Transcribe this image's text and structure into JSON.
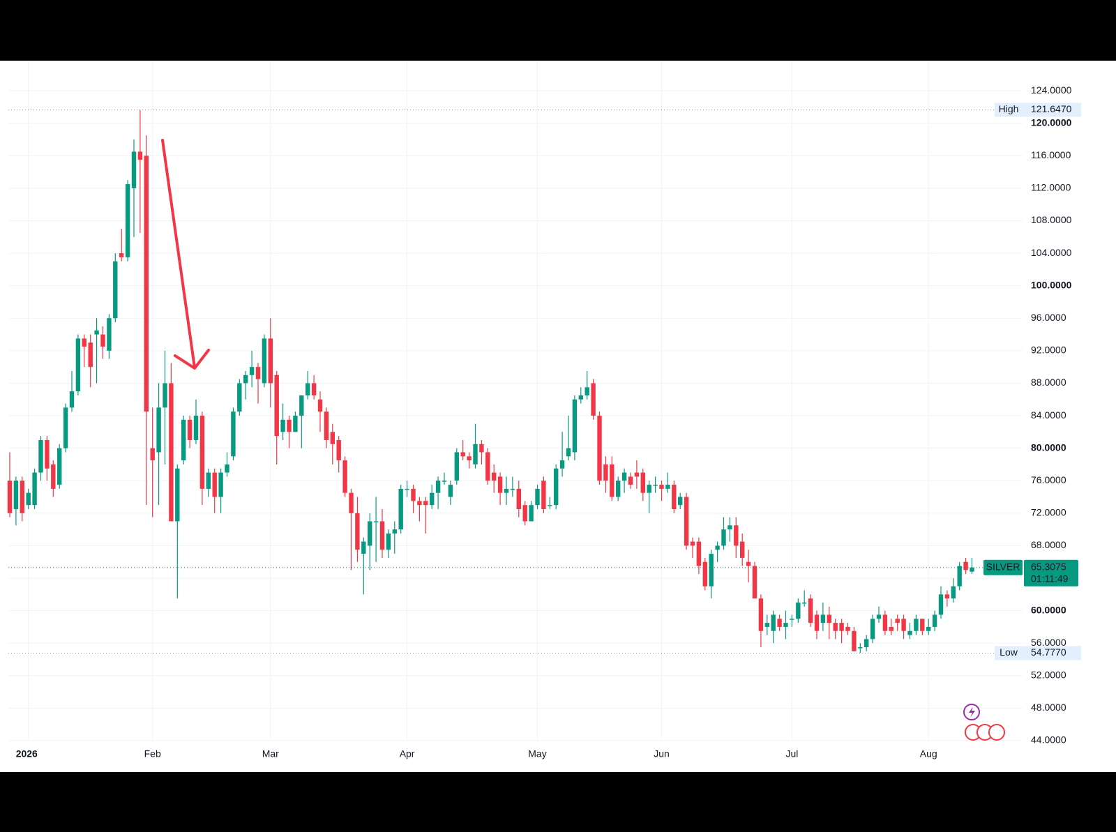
{
  "chart_data": {
    "type": "candlestick",
    "up_color": "#089981",
    "down_color": "#f23645",
    "candles": [
      [
        76,
        79.5,
        71.5,
        72
      ],
      [
        72.5,
        76.5,
        70.5,
        76
      ],
      [
        76,
        76.5,
        71,
        72
      ],
      [
        73,
        75,
        72.5,
        74.5
      ],
      [
        73,
        77.5,
        72.5,
        77
      ],
      [
        77,
        81.5,
        76,
        81
      ],
      [
        81,
        81.5,
        76,
        77.5
      ],
      [
        78,
        78.5,
        74,
        75
      ],
      [
        75.5,
        80.5,
        75,
        80
      ],
      [
        80,
        85.5,
        79.5,
        85
      ],
      [
        85,
        89.5,
        84.5,
        87
      ],
      [
        87,
        94,
        86.5,
        93.5
      ],
      [
        93.5,
        94,
        90,
        92.5
      ],
      [
        93,
        94,
        87.5,
        90
      ],
      [
        94,
        96,
        88,
        94.5
      ],
      [
        94,
        95,
        91,
        92.5
      ],
      [
        92,
        96.5,
        91,
        96
      ],
      [
        96,
        104,
        95.5,
        103
      ],
      [
        104,
        107,
        103,
        103.5
      ],
      [
        103.5,
        113,
        103,
        112.5
      ],
      [
        112,
        118,
        106,
        116.5
      ],
      [
        116.5,
        121.647,
        106.5,
        115.5
      ],
      [
        116,
        118.5,
        73,
        84.5
      ],
      [
        80,
        85,
        71.5,
        78.5
      ],
      [
        79.5,
        88,
        73,
        85
      ],
      [
        85,
        92,
        78,
        88
      ],
      [
        88,
        90.5,
        71,
        71
      ],
      [
        71,
        78,
        61.5,
        77.5
      ],
      [
        78.5,
        84,
        78,
        83.5
      ],
      [
        83.5,
        84,
        80,
        81
      ],
      [
        81,
        86,
        80.5,
        84
      ],
      [
        84,
        84.5,
        73,
        75
      ],
      [
        75,
        77.5,
        74,
        77
      ],
      [
        77,
        77.5,
        72,
        74
      ],
      [
        74,
        77.5,
        72,
        77
      ],
      [
        77,
        79.5,
        76.5,
        78
      ],
      [
        79,
        85,
        78.5,
        84.5
      ],
      [
        84.5,
        88.5,
        84,
        88
      ],
      [
        88,
        89.5,
        86,
        89
      ],
      [
        89,
        92,
        87.5,
        90
      ],
      [
        90,
        90.5,
        85.5,
        88.5
      ],
      [
        88,
        94,
        87.5,
        93.5
      ],
      [
        93.5,
        96,
        85,
        88
      ],
      [
        89,
        89.5,
        78,
        81.5
      ],
      [
        82,
        85.5,
        81,
        83.5
      ],
      [
        83.5,
        84,
        80,
        82
      ],
      [
        82,
        84.5,
        82,
        84
      ],
      [
        84,
        86.5,
        80,
        86.5
      ],
      [
        86.5,
        89.5,
        86,
        88
      ],
      [
        88,
        89,
        86,
        86.5
      ],
      [
        86,
        87,
        82,
        84.5
      ],
      [
        84.5,
        85,
        80,
        81
      ],
      [
        82,
        83,
        78,
        80.5
      ],
      [
        81,
        81.5,
        77,
        78.5
      ],
      [
        78.5,
        79,
        74,
        74.5
      ],
      [
        74.5,
        75,
        65,
        72
      ],
      [
        72,
        74,
        66,
        67.5
      ],
      [
        67,
        69,
        62,
        68.5
      ],
      [
        68,
        72,
        65,
        71
      ],
      [
        71,
        74,
        66,
        71
      ],
      [
        71,
        72.5,
        66.5,
        67.5
      ],
      [
        67.5,
        70,
        66.5,
        69.5
      ],
      [
        69.5,
        71,
        67,
        70
      ],
      [
        70,
        75.5,
        69.5,
        75
      ],
      [
        75,
        76,
        74,
        75
      ],
      [
        75,
        75.5,
        72,
        73.5
      ],
      [
        73.5,
        74,
        71,
        73
      ],
      [
        73.5,
        74,
        69.5,
        73
      ],
      [
        73,
        75.5,
        72.5,
        74.5
      ],
      [
        74.5,
        76.5,
        72.5,
        76
      ],
      [
        76,
        77,
        75.5,
        76
      ],
      [
        74,
        76,
        73,
        75.5
      ],
      [
        76,
        80,
        75.5,
        79.5
      ],
      [
        79.5,
        81,
        78.5,
        79
      ],
      [
        79,
        79.5,
        77.5,
        78.5
      ],
      [
        78,
        83,
        77.5,
        80.5
      ],
      [
        80.5,
        81,
        78,
        79.5
      ],
      [
        79.5,
        80,
        75.5,
        76
      ],
      [
        77,
        78,
        74.5,
        76
      ],
      [
        76.5,
        77,
        73,
        74.5
      ],
      [
        74.5,
        76.5,
        73,
        75
      ],
      [
        75,
        76.5,
        74,
        75
      ],
      [
        75,
        76,
        71.5,
        72.5
      ],
      [
        73,
        73.5,
        70.5,
        71
      ],
      [
        71,
        73.5,
        71,
        73
      ],
      [
        73,
        75.5,
        72.5,
        75
      ],
      [
        76,
        76.5,
        72,
        72.5
      ],
      [
        73,
        74,
        72.5,
        73
      ],
      [
        73,
        78,
        72.5,
        77.5
      ],
      [
        77.5,
        82,
        76.5,
        78.5
      ],
      [
        79,
        84,
        78.5,
        80
      ],
      [
        79.5,
        86.5,
        78.5,
        86
      ],
      [
        86,
        87.5,
        85.5,
        86.5
      ],
      [
        86.5,
        89.5,
        86,
        87.5
      ],
      [
        88,
        88.5,
        83.5,
        84
      ],
      [
        84,
        84.5,
        75.5,
        76
      ],
      [
        78,
        79,
        74.5,
        76
      ],
      [
        78,
        79,
        73.5,
        74
      ],
      [
        74,
        76.5,
        73.5,
        76
      ],
      [
        76,
        77.5,
        74.5,
        77
      ],
      [
        76.5,
        77,
        75,
        75.5
      ],
      [
        77,
        78.5,
        75,
        76.5
      ],
      [
        77,
        77.5,
        73.5,
        74.5
      ],
      [
        74.5,
        76,
        72,
        75.5
      ],
      [
        75.5,
        76.5,
        74.5,
        75.5
      ],
      [
        75.5,
        76,
        73.5,
        75
      ],
      [
        75,
        77,
        74.5,
        75.5
      ],
      [
        75.5,
        76,
        72,
        72.5
      ],
      [
        73,
        74.5,
        72.5,
        74
      ],
      [
        74,
        74.5,
        67.5,
        68
      ],
      [
        68.5,
        69,
        66.5,
        68
      ],
      [
        68.5,
        69,
        64.5,
        65.5
      ],
      [
        66,
        66.5,
        62.5,
        63
      ],
      [
        63,
        67.5,
        61.5,
        67
      ],
      [
        67.5,
        68.5,
        66,
        68
      ],
      [
        68,
        71.5,
        67.5,
        70
      ],
      [
        70,
        71.5,
        68.5,
        70.5
      ],
      [
        70.5,
        71.5,
        66.5,
        68
      ],
      [
        68.5,
        69.5,
        65.5,
        66.5
      ],
      [
        66,
        67.5,
        63.5,
        65.5
      ],
      [
        65.5,
        66,
        61.5,
        61.5
      ],
      [
        61.5,
        62,
        55.5,
        57.5
      ],
      [
        58,
        59.5,
        57,
        58.5
      ],
      [
        57.5,
        60,
        56,
        59.5
      ],
      [
        59,
        59.5,
        57.5,
        58
      ],
      [
        58,
        60,
        56.5,
        58.5
      ],
      [
        59,
        59.5,
        58,
        59
      ],
      [
        59,
        61.5,
        58.5,
        61
      ],
      [
        61,
        62.5,
        60.5,
        61
      ],
      [
        61.5,
        62,
        58,
        58.5
      ],
      [
        59.5,
        60,
        56.5,
        57.5
      ],
      [
        58.5,
        61,
        57.5,
        59.5
      ],
      [
        59.5,
        60.5,
        56.5,
        58.5
      ],
      [
        58.5,
        59,
        56.5,
        57.5
      ],
      [
        58.5,
        59,
        56,
        57.5
      ],
      [
        58,
        58.5,
        57,
        57.5
      ],
      [
        57.5,
        58,
        55,
        55
      ],
      [
        55.5,
        56,
        54.777,
        55.5
      ],
      [
        55.5,
        57,
        55,
        56.5
      ],
      [
        56.5,
        59.5,
        56,
        59
      ],
      [
        59,
        60.5,
        58.5,
        59.5
      ],
      [
        59.5,
        60,
        57,
        57.5
      ],
      [
        58,
        59,
        57,
        57.5
      ],
      [
        59,
        59.5,
        57.5,
        58.5
      ],
      [
        59,
        59.5,
        56.5,
        57.5
      ],
      [
        57,
        58.5,
        56.5,
        57.5
      ],
      [
        57.5,
        59.5,
        57,
        59
      ],
      [
        59,
        59,
        57,
        57.5
      ],
      [
        57.5,
        59,
        57,
        58
      ],
      [
        58,
        60,
        57.5,
        59.5
      ],
      [
        59.5,
        63,
        59,
        62
      ],
      [
        62,
        62.5,
        60.5,
        61.5
      ],
      [
        61.5,
        64,
        61,
        63
      ],
      [
        63,
        66,
        62.5,
        65.5
      ],
      [
        66,
        66.5,
        64.5,
        65
      ],
      [
        64.8,
        66.5,
        64.5,
        65.3075
      ]
    ],
    "ylim": [
      44,
      127.7
    ],
    "yticks": [
      {
        "value": 44,
        "label": "44.0000"
      },
      {
        "value": 48,
        "label": "48.0000"
      },
      {
        "value": 52,
        "label": "52.0000"
      },
      {
        "value": 56,
        "label": "56.0000"
      },
      {
        "value": 60,
        "label": "60.0000"
      },
      {
        "value": 64,
        "label": "64.0000"
      },
      {
        "value": 68,
        "label": "68.0000"
      },
      {
        "value": 72,
        "label": "72.0000"
      },
      {
        "value": 76,
        "label": "76.0000"
      },
      {
        "value": 80,
        "label": "80.0000"
      },
      {
        "value": 84,
        "label": "84.0000"
      },
      {
        "value": 88,
        "label": "88.0000"
      },
      {
        "value": 92,
        "label": "92.0000"
      },
      {
        "value": 96,
        "label": "96.0000"
      },
      {
        "value": 100,
        "label": "100.0000"
      },
      {
        "value": 104,
        "label": "104.0000"
      },
      {
        "value": 108,
        "label": "108.0000"
      },
      {
        "value": 112,
        "label": "112.0000"
      },
      {
        "value": 116,
        "label": "116.0000"
      },
      {
        "value": 120,
        "label": "120.0000"
      },
      {
        "value": 124,
        "label": "124.0000"
      }
    ],
    "xticks": [
      {
        "value": 3,
        "label": "2026"
      },
      {
        "value": 23,
        "label": "Feb"
      },
      {
        "value": 42,
        "label": "Mar"
      },
      {
        "value": 64,
        "label": "Apr"
      },
      {
        "value": 85,
        "label": "May"
      },
      {
        "value": 105,
        "label": "Jun"
      },
      {
        "value": 126,
        "label": "Jul"
      },
      {
        "value": 148,
        "label": "Aug"
      }
    ],
    "high": {
      "label": "High",
      "value": 121.647,
      "value_label": "121.6470"
    },
    "low": {
      "label": "Low",
      "value": 54.777,
      "value_label": "54.7770"
    },
    "last_price": {
      "name": "SILVER",
      "value": 65.3075,
      "value_label": "65.3075",
      "countdown": "01:11:49"
    }
  }
}
